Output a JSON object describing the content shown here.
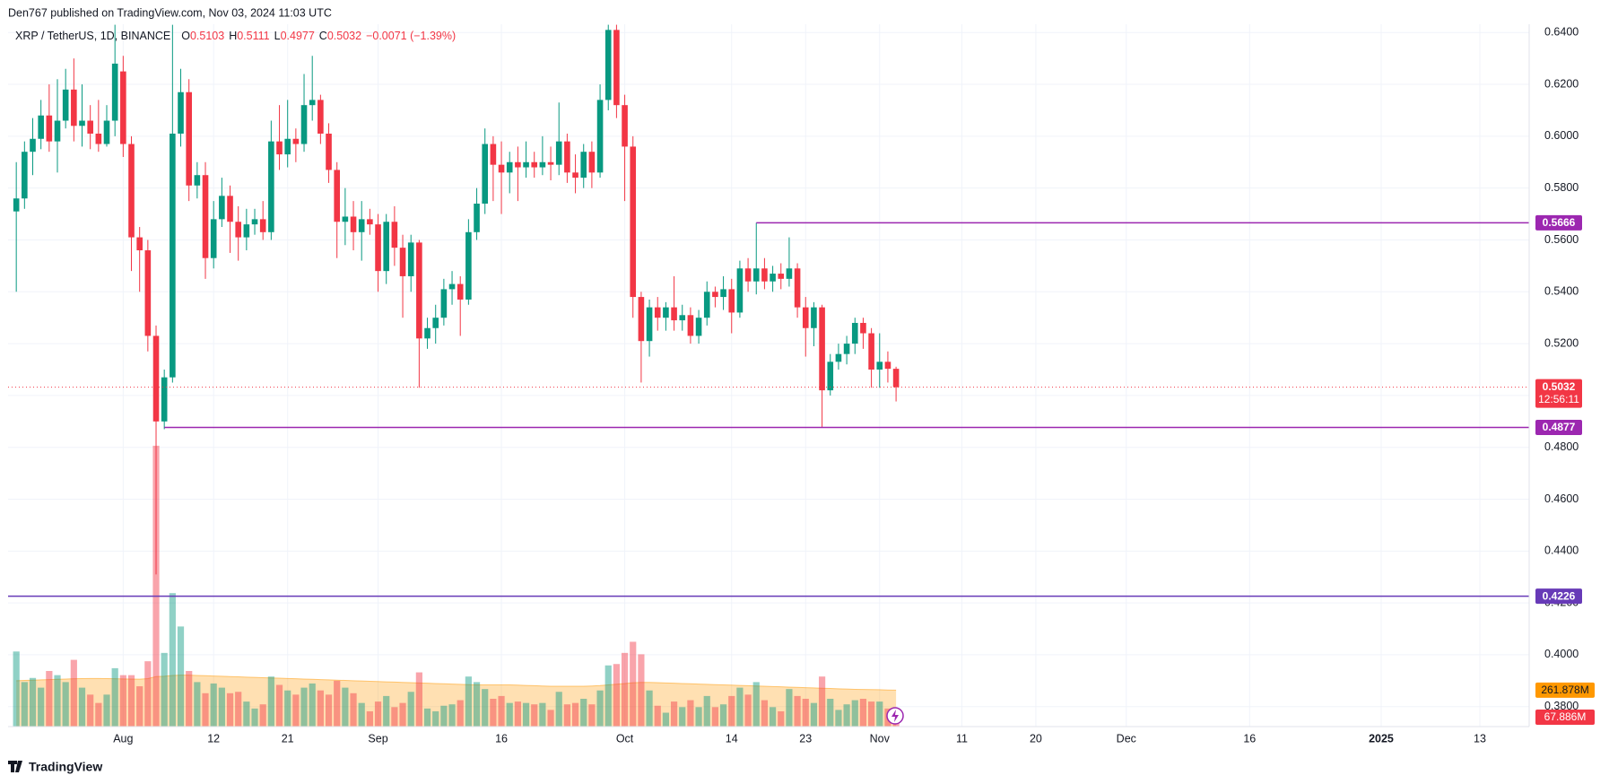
{
  "chart_data": {
    "type": "candlestick",
    "header": "Den767 published on TradingView.com, Nov 03, 2024 11:03 UTC",
    "symbol": "XRP / TetherUS, 1D, BINANCE",
    "ohlc_labels": [
      "O",
      "H",
      "L",
      "C"
    ],
    "change": "−0.0071 (−1.39%)",
    "footer": "TradingView",
    "up_color": "#089981",
    "down_color": "#f23645",
    "ma_color": "#ff9800",
    "x": [
      "2024-07-19",
      "2024-07-20",
      "2024-07-21",
      "2024-07-22",
      "2024-07-23",
      "2024-07-24",
      "2024-07-25",
      "2024-07-26",
      "2024-07-27",
      "2024-07-28",
      "2024-07-29",
      "2024-07-30",
      "2024-07-31",
      "2024-08-01",
      "2024-08-02",
      "2024-08-03",
      "2024-08-04",
      "2024-08-05",
      "2024-08-06",
      "2024-08-07",
      "2024-08-08",
      "2024-08-09",
      "2024-08-10",
      "2024-08-11",
      "2024-08-12",
      "2024-08-13",
      "2024-08-14",
      "2024-08-15",
      "2024-08-16",
      "2024-08-17",
      "2024-08-18",
      "2024-08-19",
      "2024-08-20",
      "2024-08-21",
      "2024-08-22",
      "2024-08-23",
      "2024-08-24",
      "2024-08-25",
      "2024-08-26",
      "2024-08-27",
      "2024-08-28",
      "2024-08-29",
      "2024-08-30",
      "2024-08-31",
      "2024-09-01",
      "2024-09-02",
      "2024-09-03",
      "2024-09-04",
      "2024-09-05",
      "2024-09-06",
      "2024-09-07",
      "2024-09-08",
      "2024-09-09",
      "2024-09-10",
      "2024-09-11",
      "2024-09-12",
      "2024-09-13",
      "2024-09-14",
      "2024-09-15",
      "2024-09-16",
      "2024-09-17",
      "2024-09-18",
      "2024-09-19",
      "2024-09-20",
      "2024-09-21",
      "2024-09-22",
      "2024-09-23",
      "2024-09-24",
      "2024-09-25",
      "2024-09-26",
      "2024-09-27",
      "2024-09-28",
      "2024-09-29",
      "2024-09-30",
      "2024-10-01",
      "2024-10-02",
      "2024-10-03",
      "2024-10-04",
      "2024-10-05",
      "2024-10-06",
      "2024-10-07",
      "2024-10-08",
      "2024-10-09",
      "2024-10-10",
      "2024-10-11",
      "2024-10-12",
      "2024-10-13",
      "2024-10-14",
      "2024-10-15",
      "2024-10-16",
      "2024-10-17",
      "2024-10-18",
      "2024-10-19",
      "2024-10-20",
      "2024-10-21",
      "2024-10-22",
      "2024-10-23",
      "2024-10-24",
      "2024-10-25",
      "2024-10-26",
      "2024-10-27",
      "2024-10-28",
      "2024-10-29",
      "2024-10-30",
      "2024-10-31",
      "2024-11-01",
      "2024-11-02",
      "2024-11-03"
    ],
    "open": [
      0.571,
      0.576,
      0.594,
      0.599,
      0.608,
      0.598,
      0.606,
      0.618,
      0.604,
      0.606,
      0.601,
      0.597,
      0.606,
      0.625,
      0.597,
      0.561,
      0.556,
      0.523,
      0.49,
      0.507,
      0.601,
      0.617,
      0.581,
      0.585,
      0.553,
      0.568,
      0.577,
      0.567,
      0.561,
      0.566,
      0.568,
      0.563,
      0.598,
      0.593,
      0.599,
      0.597,
      0.612,
      0.614,
      0.601,
      0.587,
      0.567,
      0.569,
      0.563,
      0.568,
      0.566,
      0.548,
      0.567,
      0.557,
      0.546,
      0.559,
      0.522,
      0.526,
      0.53,
      0.541,
      0.543,
      0.537,
      0.563,
      0.574,
      0.597,
      0.589,
      0.586,
      0.59,
      0.588,
      0.59,
      0.588,
      0.59,
      0.589,
      0.598,
      0.586,
      0.584,
      0.594,
      0.586,
      0.614,
      0.641,
      0.612,
      0.596,
      0.538,
      0.521,
      0.534,
      0.53,
      0.534,
      0.529,
      0.531,
      0.523,
      0.53,
      0.54,
      0.538,
      0.541,
      0.532,
      0.549,
      0.544,
      0.549,
      0.544,
      0.547,
      0.545,
      0.549,
      0.534,
      0.526,
      0.534,
      0.502,
      0.513,
      0.516,
      0.52,
      0.528,
      0.524,
      0.51,
      0.513,
      0.5103
    ],
    "high": [
      0.59,
      0.598,
      0.607,
      0.614,
      0.62,
      0.622,
      0.626,
      0.63,
      0.62,
      0.612,
      0.614,
      0.612,
      0.643,
      0.631,
      0.6,
      0.565,
      0.56,
      0.527,
      0.51,
      0.643,
      0.626,
      0.622,
      0.59,
      0.59,
      0.575,
      0.584,
      0.581,
      0.573,
      0.572,
      0.572,
      0.575,
      0.606,
      0.612,
      0.614,
      0.603,
      0.624,
      0.631,
      0.616,
      0.605,
      0.59,
      0.58,
      0.575,
      0.575,
      0.572,
      0.57,
      0.57,
      0.573,
      0.562,
      0.562,
      0.56,
      0.53,
      0.535,
      0.545,
      0.548,
      0.546,
      0.568,
      0.58,
      0.603,
      0.6,
      0.598,
      0.594,
      0.596,
      0.598,
      0.594,
      0.6,
      0.596,
      0.613,
      0.601,
      0.593,
      0.597,
      0.598,
      0.62,
      0.643,
      0.643,
      0.616,
      0.6,
      0.54,
      0.537,
      0.538,
      0.536,
      0.546,
      0.535,
      0.534,
      0.533,
      0.544,
      0.542,
      0.546,
      0.545,
      0.552,
      0.553,
      0.5666,
      0.553,
      0.55,
      0.551,
      0.561,
      0.551,
      0.538,
      0.536,
      0.535,
      0.516,
      0.52,
      0.523,
      0.53,
      0.53,
      0.526,
      0.524,
      0.517,
      0.5111
    ],
    "low": [
      0.54,
      0.572,
      0.585,
      0.595,
      0.594,
      0.586,
      0.603,
      0.598,
      0.596,
      0.595,
      0.594,
      0.596,
      0.6,
      0.592,
      0.548,
      0.54,
      0.517,
      0.431,
      0.487,
      0.505,
      0.596,
      0.575,
      0.576,
      0.545,
      0.549,
      0.565,
      0.555,
      0.552,
      0.556,
      0.562,
      0.56,
      0.56,
      0.587,
      0.588,
      0.59,
      0.594,
      0.606,
      0.597,
      0.582,
      0.553,
      0.558,
      0.556,
      0.552,
      0.562,
      0.54,
      0.543,
      0.55,
      0.53,
      0.54,
      0.503,
      0.518,
      0.52,
      0.527,
      0.535,
      0.523,
      0.535,
      0.56,
      0.57,
      0.575,
      0.57,
      0.578,
      0.575,
      0.584,
      0.584,
      0.585,
      0.583,
      0.585,
      0.582,
      0.578,
      0.58,
      0.58,
      0.584,
      0.61,
      0.607,
      0.575,
      0.53,
      0.505,
      0.515,
      0.525,
      0.525,
      0.525,
      0.525,
      0.52,
      0.52,
      0.527,
      0.534,
      0.533,
      0.524,
      0.53,
      0.54,
      0.539,
      0.541,
      0.54,
      0.541,
      0.542,
      0.53,
      0.515,
      0.519,
      0.4877,
      0.5,
      0.51,
      0.512,
      0.516,
      0.518,
      0.503,
      0.503,
      0.505,
      0.4977
    ],
    "close": [
      0.576,
      0.594,
      0.599,
      0.608,
      0.598,
      0.606,
      0.618,
      0.604,
      0.606,
      0.601,
      0.597,
      0.606,
      0.628,
      0.597,
      0.561,
      0.556,
      0.523,
      0.49,
      0.507,
      0.601,
      0.617,
      0.581,
      0.585,
      0.553,
      0.568,
      0.577,
      0.567,
      0.561,
      0.566,
      0.568,
      0.563,
      0.598,
      0.593,
      0.599,
      0.597,
      0.612,
      0.614,
      0.601,
      0.587,
      0.567,
      0.569,
      0.563,
      0.568,
      0.566,
      0.548,
      0.567,
      0.557,
      0.546,
      0.559,
      0.522,
      0.526,
      0.53,
      0.541,
      0.543,
      0.537,
      0.563,
      0.574,
      0.597,
      0.589,
      0.586,
      0.59,
      0.588,
      0.59,
      0.588,
      0.59,
      0.589,
      0.598,
      0.586,
      0.584,
      0.594,
      0.586,
      0.614,
      0.641,
      0.612,
      0.596,
      0.538,
      0.521,
      0.534,
      0.53,
      0.534,
      0.529,
      0.531,
      0.523,
      0.53,
      0.54,
      0.538,
      0.541,
      0.532,
      0.549,
      0.544,
      0.549,
      0.544,
      0.547,
      0.545,
      0.549,
      0.534,
      0.526,
      0.534,
      0.502,
      0.513,
      0.516,
      0.52,
      0.528,
      0.524,
      0.51,
      0.513,
      0.5103,
      0.5032
    ],
    "volume": [
      540,
      320,
      350,
      280,
      400,
      370,
      320,
      480,
      280,
      230,
      170,
      230,
      420,
      370,
      370,
      290,
      470,
      2020,
      530,
      960,
      720,
      400,
      320,
      240,
      310,
      280,
      240,
      250,
      180,
      130,
      160,
      360,
      300,
      260,
      230,
      280,
      310,
      260,
      230,
      330,
      280,
      240,
      170,
      110,
      180,
      220,
      140,
      170,
      250,
      390,
      130,
      110,
      150,
      160,
      190,
      360,
      320,
      270,
      200,
      220,
      170,
      180,
      170,
      160,
      170,
      120,
      250,
      160,
      170,
      200,
      160,
      260,
      440,
      450,
      530,
      610,
      520,
      260,
      150,
      100,
      180,
      140,
      190,
      140,
      220,
      140,
      160,
      220,
      280,
      230,
      320,
      190,
      140,
      110,
      270,
      220,
      200,
      170,
      360,
      200,
      120,
      160,
      190,
      200,
      180,
      180,
      130,
      67.886
    ],
    "volume_ma": [
      330,
      332,
      334,
      336,
      338,
      340,
      342,
      344,
      345,
      346,
      346,
      345,
      344,
      343,
      342,
      341,
      345,
      360,
      362,
      368,
      370,
      370,
      368,
      366,
      364,
      362,
      360,
      358,
      356,
      354,
      352,
      350,
      348,
      346,
      344,
      342,
      340,
      338,
      336,
      334,
      332,
      330,
      328,
      326,
      324,
      322,
      320,
      318,
      316,
      314,
      312,
      310,
      308,
      306,
      304,
      302,
      300,
      300,
      300,
      300,
      300,
      298,
      296,
      294,
      292,
      290,
      290,
      290,
      290,
      290,
      292,
      295,
      300,
      305,
      310,
      315,
      318,
      318,
      316,
      314,
      312,
      310,
      308,
      306,
      304,
      302,
      300,
      298,
      296,
      294,
      292,
      290,
      288,
      286,
      284,
      282,
      280,
      278,
      276,
      274,
      272,
      270,
      268,
      267,
      266,
      265,
      263,
      261.878
    ],
    "volume_ma_label": "261.878M",
    "volume_label": "67.886M",
    "countdown": "12:56:11",
    "levels": [
      {
        "value": 0.5666,
        "start": "2024-10-17",
        "color": "#9c27b0"
      },
      {
        "value": 0.4877,
        "start": "2024-08-06",
        "color": "#9c27b0"
      },
      {
        "value": 0.4226,
        "color": "#673ab7"
      }
    ],
    "ylim": [
      0.3723,
      0.6432
    ],
    "yticks": [
      {
        "value": 0.38,
        "label": "0.3800"
      },
      {
        "value": 0.4,
        "label": "0.4000"
      },
      {
        "value": 0.42,
        "label": "0.4200"
      },
      {
        "value": 0.44,
        "label": "0.4400"
      },
      {
        "value": 0.46,
        "label": "0.4600"
      },
      {
        "value": 0.48,
        "label": "0.4800"
      },
      {
        "value": 0.5,
        "label": "0.5000"
      },
      {
        "value": 0.52,
        "label": "0.5200"
      },
      {
        "value": 0.54,
        "label": "0.5400"
      },
      {
        "value": 0.56,
        "label": "0.5600"
      },
      {
        "value": 0.58,
        "label": "0.5800"
      },
      {
        "value": 0.6,
        "label": "0.6000"
      },
      {
        "value": 0.62,
        "label": "0.6200"
      },
      {
        "value": 0.64,
        "label": "0.6400"
      }
    ],
    "xlim": [
      "2024-07-18",
      "2025-01-19"
    ],
    "xticks": [
      {
        "value": "2024-08-01",
        "label": "Aug"
      },
      {
        "value": "2024-08-12",
        "label": "12"
      },
      {
        "value": "2024-08-21",
        "label": "21"
      },
      {
        "value": "2024-09-01",
        "label": "Sep"
      },
      {
        "value": "2024-09-16",
        "label": "16"
      },
      {
        "value": "2024-10-01",
        "label": "Oct"
      },
      {
        "value": "2024-10-14",
        "label": "14"
      },
      {
        "value": "2024-10-23",
        "label": "23"
      },
      {
        "value": "2024-11-01",
        "label": "Nov"
      },
      {
        "value": "2024-11-11",
        "label": "11"
      },
      {
        "value": "2024-11-20",
        "label": "20"
      },
      {
        "value": "2024-12-01",
        "label": "Dec"
      },
      {
        "value": "2024-12-16",
        "label": "16"
      },
      {
        "value": "2025-01-01",
        "label": "2025"
      },
      {
        "value": "2025-01-13",
        "label": "13"
      }
    ],
    "grid": true
  }
}
